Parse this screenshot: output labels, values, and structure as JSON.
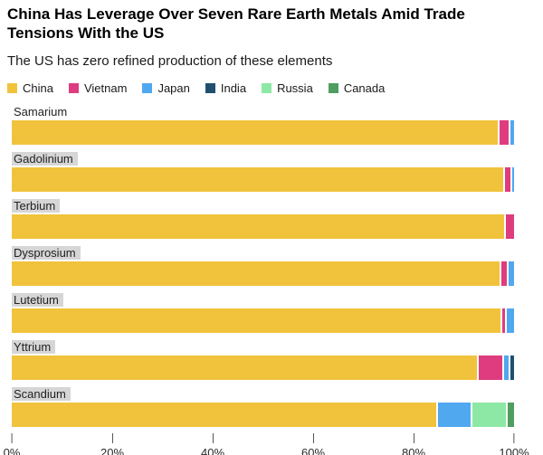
{
  "header": {
    "title": "China Has Leverage Over Seven Rare Earth Metals Amid Trade Tensions With the US",
    "subtitle": "The US has zero refined production of these elements"
  },
  "legend": [
    {
      "label": "China",
      "color": "#F1C33C"
    },
    {
      "label": "Vietnam",
      "color": "#DE3C7E"
    },
    {
      "label": "Japan",
      "color": "#50A8EF"
    },
    {
      "label": "India",
      "color": "#20506E"
    },
    {
      "label": "Russia",
      "color": "#8DE8A5"
    },
    {
      "label": "Canada",
      "color": "#4F9E60"
    }
  ],
  "chart_data": {
    "type": "bar",
    "orientation": "horizontal",
    "stacked": true,
    "unit": "percent of refined production",
    "title": "China Has Leverage Over Seven Rare Earth Metals Amid Trade Tensions With the US",
    "subtitle": "The US has zero refined production of these elements",
    "xlabel": "",
    "ylabel": "",
    "xlim": [
      0,
      100
    ],
    "grid": false,
    "legend_position": "top",
    "categories": [
      "Samarium",
      "Gadolinium",
      "Terbium",
      "Dysprosium",
      "Lutetium",
      "Yttrium",
      "Scandium"
    ],
    "category_label_highlighted": [
      false,
      true,
      true,
      true,
      true,
      true,
      true
    ],
    "series": [
      {
        "name": "China",
        "color": "#F1C33C",
        "values": [
          97.2,
          98.2,
          98.4,
          97.4,
          97.6,
          93.0,
          84.9
        ]
      },
      {
        "name": "Vietnam",
        "color": "#DE3C7E",
        "values": [
          2.0,
          1.4,
          1.6,
          1.6,
          1.0,
          5.0,
          0
        ]
      },
      {
        "name": "Japan",
        "color": "#50A8EF",
        "values": [
          0.8,
          0.4,
          0,
          1.0,
          1.4,
          1.2,
          6.8
        ]
      },
      {
        "name": "India",
        "color": "#20506E",
        "values": [
          0,
          0,
          0,
          0,
          0,
          0.8,
          0
        ]
      },
      {
        "name": "Russia",
        "color": "#8DE8A5",
        "values": [
          0,
          0,
          0,
          0,
          0,
          0,
          7.1
        ]
      },
      {
        "name": "Canada",
        "color": "#4F9E60",
        "values": [
          0,
          0,
          0,
          0,
          0,
          0,
          1.2
        ]
      }
    ],
    "x_ticks": [
      {
        "value": 0,
        "label": "0%"
      },
      {
        "value": 20,
        "label": "20%"
      },
      {
        "value": 40,
        "label": "40%"
      },
      {
        "value": 60,
        "label": "60%"
      },
      {
        "value": 80,
        "label": "80%"
      },
      {
        "value": 100,
        "label": "100%"
      }
    ]
  }
}
